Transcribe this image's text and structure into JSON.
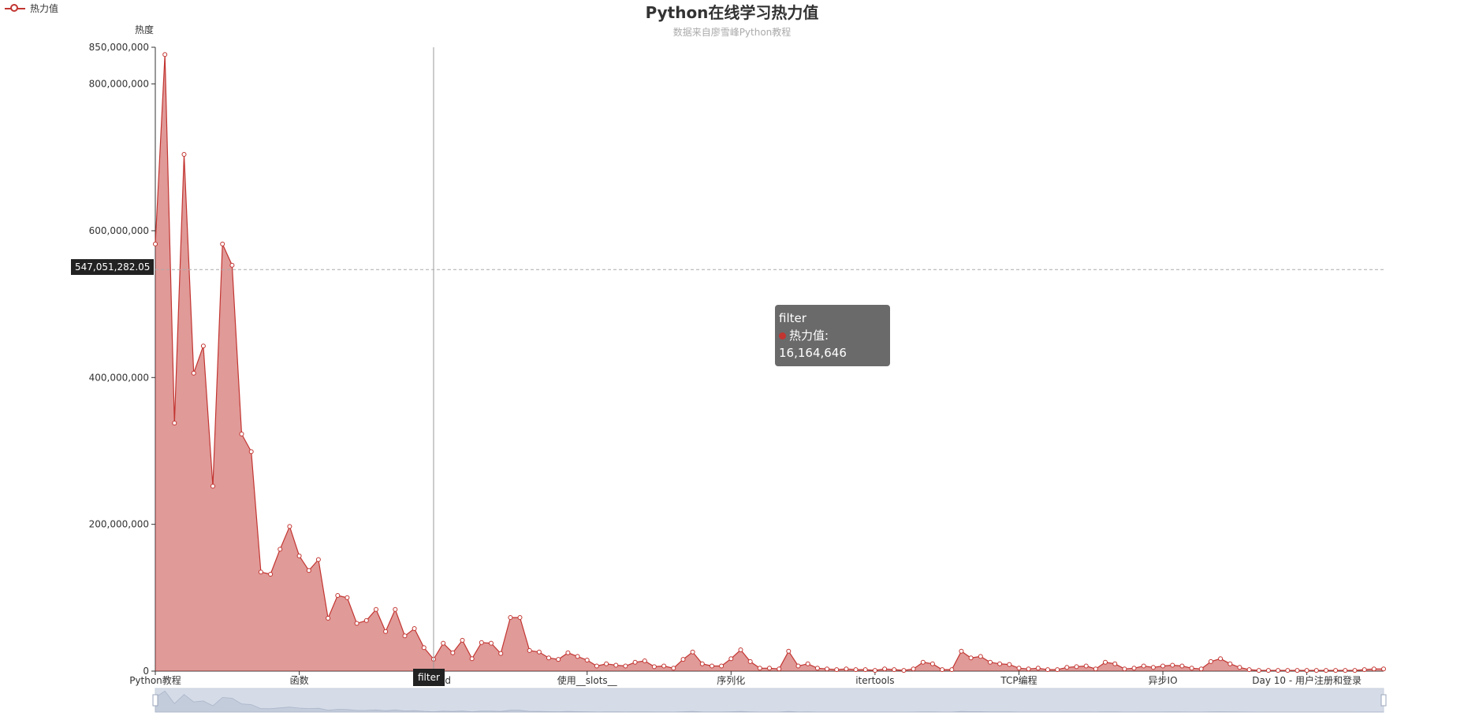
{
  "chart_data": {
    "type": "area",
    "title": "Python在线学习热力值",
    "subtitle": "数据来自廖雪峰Python教程",
    "ylabel": "热度",
    "legend": {
      "items": [
        "热力值"
      ],
      "placement": "top-left"
    },
    "ylim": [
      0,
      850000000
    ],
    "y_ticks": [
      "0",
      "200,000,000",
      "400,000,000",
      "600,000,000",
      "800,000,000",
      "850,000,000"
    ],
    "x_tick_labels": [
      {
        "index": 0,
        "label": "Python教程"
      },
      {
        "index": 15,
        "label": "函数"
      },
      {
        "index": 30,
        "label": "…d"
      },
      {
        "index": 45,
        "label": "使用__slots__"
      },
      {
        "index": 60,
        "label": "序列化"
      },
      {
        "index": 75,
        "label": "itertools"
      },
      {
        "index": 90,
        "label": "TCP编程"
      },
      {
        "index": 105,
        "label": "异步IO"
      },
      {
        "index": 120,
        "label": "Day 10 - 用户注册和登录"
      }
    ],
    "series": [
      {
        "name": "热力值",
        "color": "#c23531",
        "values": [
          582000000,
          840000000,
          338000000,
          704000000,
          406000000,
          443000000,
          252000000,
          582000000,
          553000000,
          323000000,
          299000000,
          135000000,
          132000000,
          166000000,
          197000000,
          157000000,
          137000000,
          152000000,
          72000000,
          103000000,
          100000000,
          65000000,
          69000000,
          84000000,
          54000000,
          84000000,
          48000000,
          58000000,
          32000000,
          16164646,
          38000000,
          25000000,
          42000000,
          17000000,
          39000000,
          38000000,
          24000000,
          73000000,
          73000000,
          28000000,
          26000000,
          18000000,
          16000000,
          25000000,
          20000000,
          15000000,
          7000000,
          10000000,
          8000000,
          7000000,
          12000000,
          14000000,
          6000000,
          7000000,
          4000000,
          16000000,
          26000000,
          10000000,
          7000000,
          7000000,
          17000000,
          29000000,
          13000000,
          4000000,
          4000000,
          3000000,
          27000000,
          7000000,
          10000000,
          4000000,
          3000000,
          2000000,
          3000000,
          2000000,
          2000000,
          1000000,
          3000000,
          2000000,
          1000000,
          3000000,
          12000000,
          10000000,
          2000000,
          2000000,
          27000000,
          18000000,
          20000000,
          12000000,
          10000000,
          9000000,
          4000000,
          3000000,
          4000000,
          2000000,
          2000000,
          5000000,
          6000000,
          7000000,
          3000000,
          12000000,
          10000000,
          3000000,
          4000000,
          7000000,
          5000000,
          7000000,
          8000000,
          7000000,
          4000000,
          3000000,
          13000000,
          17000000,
          10000000,
          5000000,
          2000000,
          1000000,
          1000000,
          1000000,
          1000000,
          1000000,
          1000000,
          1000000,
          1000000,
          1000000,
          1000000,
          1000000,
          2000000,
          3000000,
          3000000
        ]
      }
    ],
    "axis_pointer": {
      "y_value_label": "547,051,282.05",
      "x_category_label": "filter",
      "y_value": 547051282.05
    },
    "tooltip": {
      "category": "filter",
      "series_name": "热力值",
      "value_text": "16,164,646"
    },
    "grid": false
  }
}
